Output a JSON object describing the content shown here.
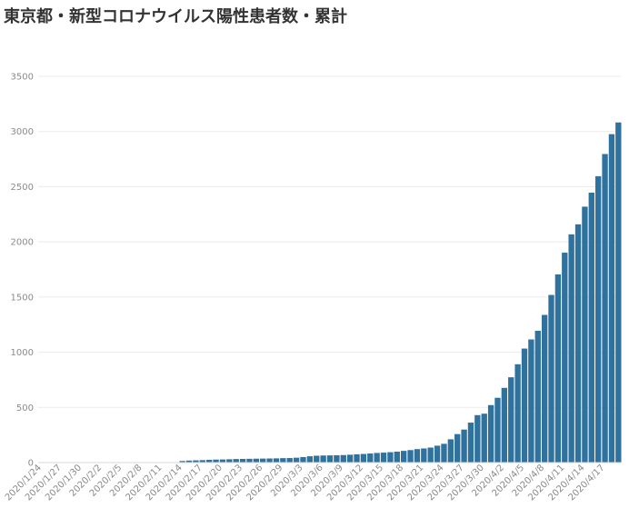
{
  "chart_data": {
    "type": "bar",
    "title": "東京都・新型コロナウイルス陽性患者数・累計",
    "xlabel": "",
    "ylabel": "",
    "ylim": [
      0,
      3500
    ],
    "yticks": [
      0,
      500,
      1000,
      1500,
      2000,
      2500,
      3000,
      3500
    ],
    "grid": true,
    "bar_color": "#30729e",
    "x_tick_labels": [
      "2020/1/24",
      "2020/1/27",
      "2020/1/30",
      "2020/2/2",
      "2020/2/5",
      "2020/2/8",
      "2020/2/11",
      "2020/2/14",
      "2020/2/17",
      "2020/2/20",
      "2020/2/23",
      "2020/2/26",
      "2020/2/29",
      "2020/3/3",
      "2020/3/6",
      "2020/3/9",
      "2020/3/12",
      "2020/3/15",
      "2020/3/18",
      "2020/3/21",
      "2020/3/24",
      "2020/3/27",
      "2020/3/30",
      "2020/4/2",
      "2020/4/5",
      "2020/4/8",
      "2020/4/11",
      "2020/4/14",
      "2020/4/17"
    ],
    "categories": [
      "2020/1/24",
      "2020/1/25",
      "2020/1/26",
      "2020/1/27",
      "2020/1/28",
      "2020/1/29",
      "2020/1/30",
      "2020/1/31",
      "2020/2/1",
      "2020/2/2",
      "2020/2/3",
      "2020/2/4",
      "2020/2/5",
      "2020/2/6",
      "2020/2/7",
      "2020/2/8",
      "2020/2/9",
      "2020/2/10",
      "2020/2/11",
      "2020/2/12",
      "2020/2/13",
      "2020/2/14",
      "2020/2/15",
      "2020/2/16",
      "2020/2/17",
      "2020/2/18",
      "2020/2/19",
      "2020/2/20",
      "2020/2/21",
      "2020/2/22",
      "2020/2/23",
      "2020/2/24",
      "2020/2/25",
      "2020/2/26",
      "2020/2/27",
      "2020/2/28",
      "2020/2/29",
      "2020/3/1",
      "2020/3/2",
      "2020/3/3",
      "2020/3/4",
      "2020/3/5",
      "2020/3/6",
      "2020/3/7",
      "2020/3/8",
      "2020/3/9",
      "2020/3/10",
      "2020/3/11",
      "2020/3/12",
      "2020/3/13",
      "2020/3/14",
      "2020/3/15",
      "2020/3/16",
      "2020/3/17",
      "2020/3/18",
      "2020/3/19",
      "2020/3/20",
      "2020/3/21",
      "2020/3/22",
      "2020/3/23",
      "2020/3/24",
      "2020/3/25",
      "2020/3/26",
      "2020/3/27",
      "2020/3/28",
      "2020/3/29",
      "2020/3/30",
      "2020/3/31",
      "2020/4/1",
      "2020/4/2",
      "2020/4/3",
      "2020/4/4",
      "2020/4/5",
      "2020/4/6",
      "2020/4/7",
      "2020/4/8",
      "2020/4/9",
      "2020/4/10",
      "2020/4/11",
      "2020/4/12",
      "2020/4/13",
      "2020/4/14",
      "2020/4/15",
      "2020/4/16",
      "2020/4/17",
      "2020/4/18",
      "2020/4/19"
    ],
    "values": [
      1,
      1,
      1,
      1,
      1,
      1,
      1,
      2,
      2,
      2,
      2,
      2,
      2,
      2,
      2,
      2,
      2,
      2,
      2,
      3,
      4,
      14,
      18,
      20,
      22,
      25,
      27,
      28,
      30,
      32,
      33,
      34,
      35,
      36,
      37,
      38,
      40,
      41,
      44,
      50,
      57,
      62,
      64,
      65,
      66,
      68,
      71,
      75,
      78,
      82,
      87,
      90,
      94,
      99,
      106,
      113,
      122,
      128,
      136,
      153,
      170,
      211,
      258,
      299,
      362,
      430,
      443,
      521,
      587,
      677,
      773,
      891,
      1033,
      1116,
      1194,
      1338,
      1519,
      1705,
      1902,
      2068,
      2159,
      2319,
      2446,
      2595,
      2796,
      2976,
      3082
    ]
  }
}
